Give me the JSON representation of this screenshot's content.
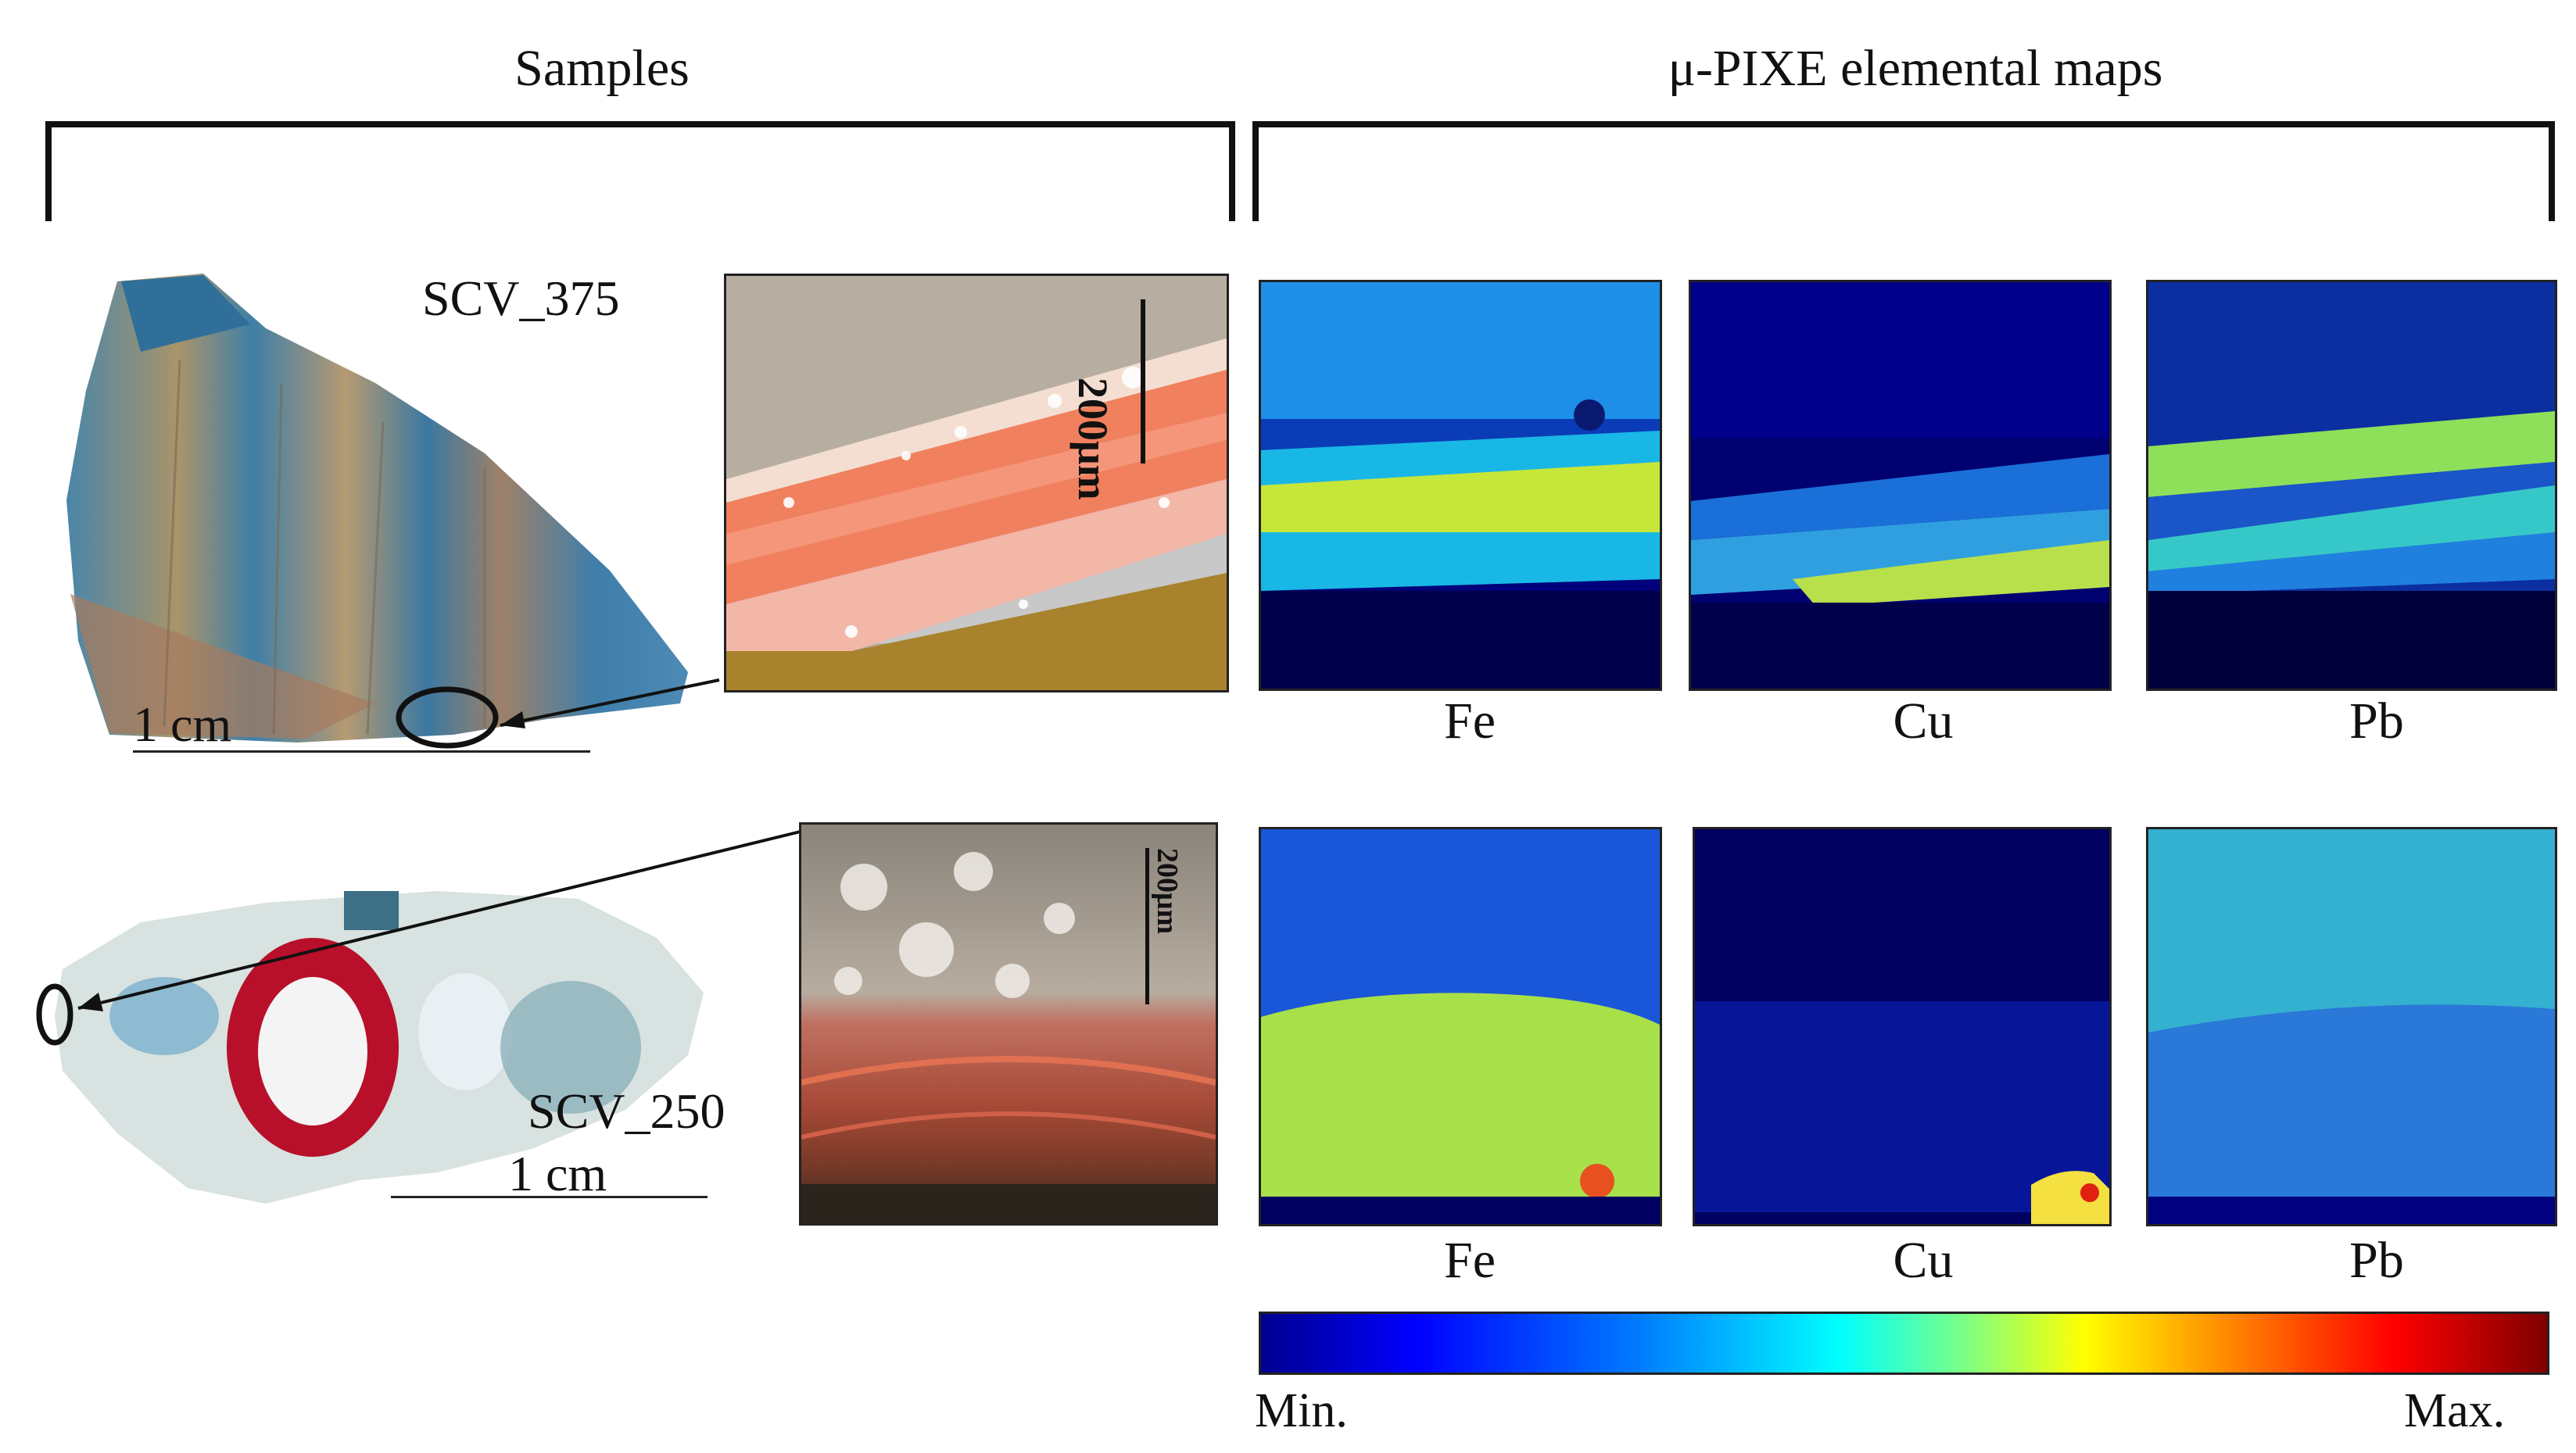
{
  "headers": {
    "samples": "Samples",
    "maps": "μ-PIXE elemental maps"
  },
  "samples": [
    {
      "name": "SCV_375",
      "scale_label": "1 cm",
      "micro_scale_label": "200μm"
    },
    {
      "name": "SCV_250",
      "scale_label": "1 cm",
      "micro_scale_label": "200μm"
    }
  ],
  "maps": {
    "row1": [
      "Fe",
      "Cu",
      "Pb"
    ],
    "row2": [
      "Fe",
      "Cu",
      "Pb"
    ]
  },
  "colorbar": {
    "min_label": "Min.",
    "max_label": "Max.",
    "colormap": "jet"
  }
}
